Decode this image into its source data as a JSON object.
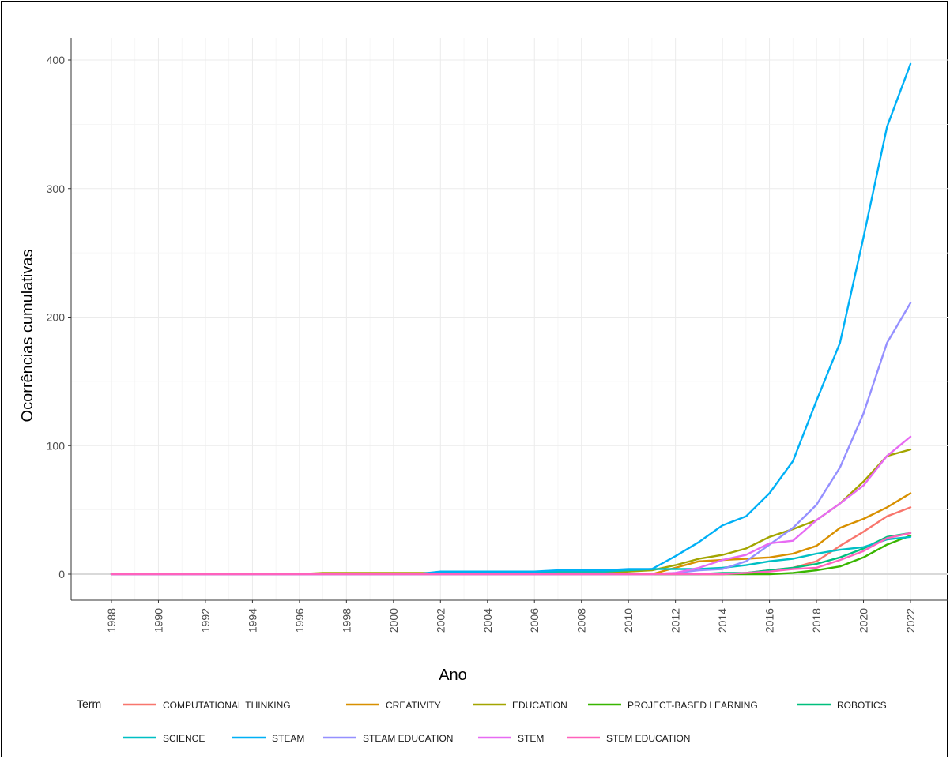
{
  "chart_data": {
    "type": "line",
    "title": "",
    "xlabel": "Ano",
    "ylabel": "Ocorrências cumulativas",
    "xlim": [
      1988,
      2022
    ],
    "ylim": [
      -20,
      418
    ],
    "x_ticks": [
      1988,
      1990,
      1992,
      1994,
      1996,
      1998,
      2000,
      2002,
      2004,
      2006,
      2008,
      2010,
      2012,
      2014,
      2016,
      2018,
      2020,
      2022
    ],
    "y_ticks": [
      0,
      100,
      200,
      300,
      400
    ],
    "grid": true,
    "legend_title": "Term",
    "legend_position": "bottom",
    "x": [
      1988,
      1989,
      1990,
      1991,
      1992,
      1993,
      1994,
      1995,
      1996,
      1997,
      1998,
      1999,
      2000,
      2001,
      2002,
      2003,
      2004,
      2005,
      2006,
      2007,
      2008,
      2009,
      2010,
      2011,
      2012,
      2013,
      2014,
      2015,
      2016,
      2017,
      2018,
      2019,
      2020,
      2021,
      2022
    ],
    "series": [
      {
        "name": "COMPUTATIONAL THINKING",
        "color": "#F8766D",
        "values": [
          0,
          0,
          0,
          0,
          0,
          0,
          0,
          0,
          0,
          0,
          0,
          0,
          0,
          0,
          0,
          0,
          0,
          0,
          0,
          0,
          0,
          0,
          0,
          0,
          0,
          0,
          0,
          1,
          3,
          5,
          10,
          22,
          33,
          45,
          52
        ]
      },
      {
        "name": "CREATIVITY",
        "color": "#D89000",
        "values": [
          0,
          0,
          0,
          0,
          0,
          0,
          0,
          0,
          0,
          0,
          0,
          0,
          0,
          0,
          0,
          0,
          0,
          0,
          0,
          0,
          0,
          0,
          0,
          0,
          5,
          10,
          11,
          12,
          13,
          16,
          22,
          36,
          43,
          52,
          63
        ]
      },
      {
        "name": "EDUCATION",
        "color": "#A3A500",
        "values": [
          0,
          0,
          0,
          0,
          0,
          0,
          0,
          0,
          0,
          1,
          1,
          1,
          1,
          1,
          1,
          1,
          1,
          1,
          1,
          1,
          1,
          1,
          2,
          3,
          7,
          12,
          15,
          20,
          29,
          35,
          42,
          55,
          72,
          92,
          97
        ]
      },
      {
        "name": "PROJECT-BASED LEARNING",
        "color": "#39B600",
        "values": [
          0,
          0,
          0,
          0,
          0,
          0,
          0,
          0,
          0,
          0,
          0,
          0,
          0,
          0,
          0,
          0,
          0,
          0,
          0,
          0,
          0,
          0,
          0,
          0,
          0,
          0,
          0,
          0,
          0,
          1,
          3,
          6,
          13,
          23,
          30
        ]
      },
      {
        "name": "ROBOTICS",
        "color": "#00BF7D",
        "values": [
          0,
          0,
          0,
          0,
          0,
          0,
          0,
          0,
          0,
          0,
          0,
          0,
          0,
          0,
          0,
          0,
          0,
          0,
          0,
          0,
          0,
          0,
          0,
          0,
          0,
          0,
          1,
          1,
          3,
          5,
          8,
          13,
          20,
          29,
          32
        ]
      },
      {
        "name": "SCIENCE",
        "color": "#00BFC4",
        "values": [
          0,
          0,
          0,
          0,
          0,
          0,
          0,
          0,
          0,
          0,
          0,
          0,
          0,
          0,
          1,
          1,
          1,
          1,
          1,
          2,
          2,
          2,
          3,
          4,
          4,
          4,
          5,
          7,
          10,
          12,
          16,
          19,
          21,
          27,
          29
        ]
      },
      {
        "name": "STEAM",
        "color": "#00B0F6",
        "values": [
          0,
          0,
          0,
          0,
          0,
          0,
          0,
          0,
          0,
          0,
          0,
          0,
          0,
          0,
          2,
          2,
          2,
          2,
          2,
          3,
          3,
          3,
          4,
          4,
          14,
          25,
          38,
          45,
          63,
          88,
          135,
          180,
          262,
          348,
          397
        ]
      },
      {
        "name": "STEAM EDUCATION",
        "color": "#9590FF",
        "values": [
          0,
          0,
          0,
          0,
          0,
          0,
          0,
          0,
          0,
          0,
          0,
          0,
          0,
          0,
          0,
          0,
          0,
          0,
          0,
          0,
          0,
          0,
          0,
          0,
          1,
          3,
          4,
          10,
          23,
          36,
          54,
          83,
          125,
          180,
          211
        ]
      },
      {
        "name": "STEM",
        "color": "#E76BF3",
        "values": [
          0,
          0,
          0,
          0,
          0,
          0,
          0,
          0,
          0,
          0,
          0,
          0,
          0,
          0,
          0,
          0,
          0,
          0,
          0,
          0,
          0,
          0,
          0,
          0,
          1,
          5,
          11,
          15,
          24,
          26,
          42,
          55,
          69,
          92,
          107
        ]
      },
      {
        "name": "STEM EDUCATION",
        "color": "#FF62BC",
        "values": [
          0,
          0,
          0,
          0,
          0,
          0,
          0,
          0,
          0,
          0,
          0,
          0,
          0,
          0,
          0,
          0,
          0,
          0,
          0,
          0,
          0,
          0,
          0,
          0,
          0,
          0,
          0,
          1,
          2,
          4,
          5,
          11,
          18,
          28,
          32
        ]
      }
    ]
  }
}
